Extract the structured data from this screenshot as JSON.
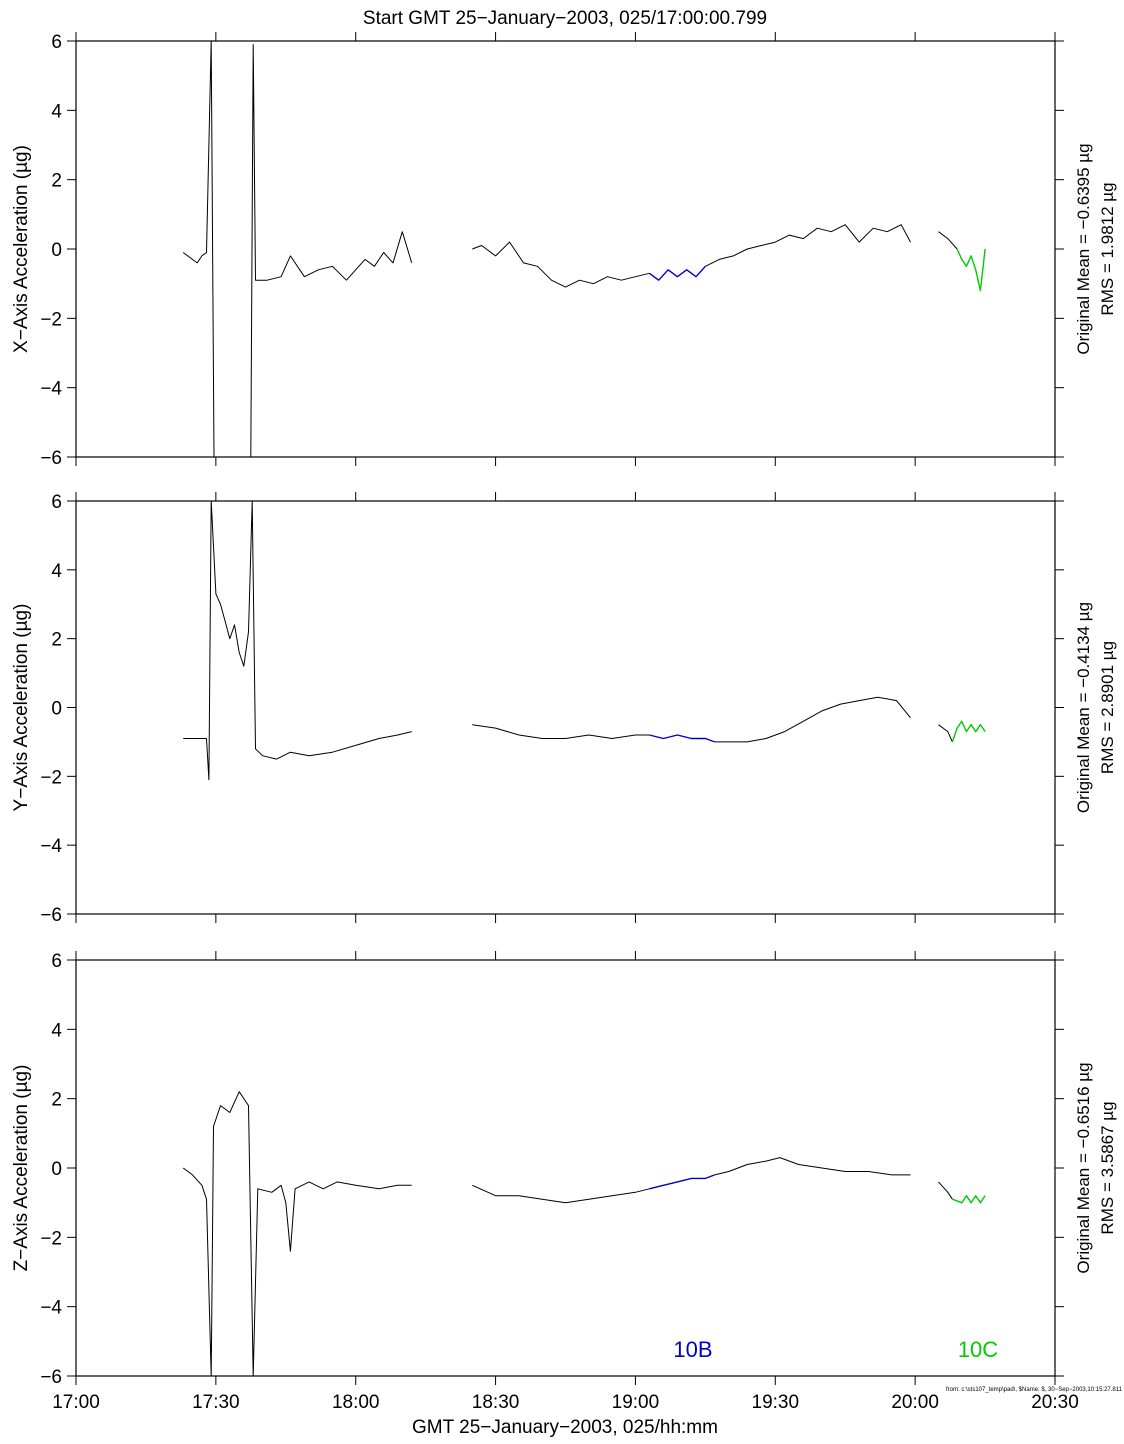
{
  "page_title": "Start GMT 25−January−2003, 025/17:00:00.799",
  "xlabel": "GMT 25−January−2003, 025/hh:mm",
  "footer": "from: c:\\sts107_temp\\pad\\, $Name:  $, 30−Sep−2003,10:15:27.811",
  "colors": {
    "trace": "#000000",
    "segment_10B": "#0000cc",
    "segment_10C": "#00cc00"
  },
  "segment_labels": {
    "b": "10B",
    "c": "10C"
  },
  "chart_data": [
    {
      "type": "line",
      "ylabel": "X−Axis Acceleration (µg)",
      "mean_label": "Original Mean = −0.6395 µg",
      "rms_label": "RMS = 1.9812 µg",
      "xlim": [
        "17:00",
        "20:30"
      ],
      "ylim": [
        -6,
        6
      ],
      "xticks": [
        "17:00",
        "17:30",
        "18:00",
        "18:30",
        "19:00",
        "19:30",
        "20:00",
        "20:30"
      ],
      "yticks": [
        "−6",
        "−4",
        "−2",
        "0",
        "2",
        "4",
        "6"
      ],
      "series": [
        {
          "color": "black",
          "points": [
            [
              "17:23",
              -0.1
            ],
            [
              "17:25",
              -0.3
            ],
            [
              "17:26",
              -0.4
            ],
            [
              "17:27",
              -0.2
            ],
            [
              "17:28",
              -0.1
            ],
            [
              "17:29",
              6
            ],
            [
              "17:29.6",
              -6
            ],
            [
              "17:37.5",
              -6
            ],
            [
              "17:38",
              5.9
            ],
            [
              "17:38.5",
              -0.9
            ],
            [
              "17:41",
              -0.9
            ],
            [
              "17:44",
              -0.8
            ],
            [
              "17:46",
              -0.2
            ],
            [
              "17:49",
              -0.8
            ],
            [
              "17:52",
              -0.6
            ],
            [
              "17:55",
              -0.5
            ],
            [
              "17:58",
              -0.9
            ],
            [
              "18:00",
              -0.6
            ],
            [
              "18:02",
              -0.3
            ],
            [
              "18:04",
              -0.5
            ],
            [
              "18:06",
              -0.1
            ],
            [
              "18:08",
              -0.4
            ],
            [
              "18:10",
              0.5
            ],
            [
              "18:12",
              -0.4
            ]
          ]
        },
        {
          "color": "black",
          "points": [
            [
              "18:25",
              0
            ],
            [
              "18:27",
              0.1
            ],
            [
              "18:30",
              -0.2
            ],
            [
              "18:33",
              0.2
            ],
            [
              "18:36",
              -0.4
            ],
            [
              "18:39",
              -0.5
            ],
            [
              "18:42",
              -0.9
            ],
            [
              "18:45",
              -1.1
            ],
            [
              "18:48",
              -0.9
            ],
            [
              "18:51",
              -1
            ],
            [
              "18:54",
              -0.8
            ],
            [
              "18:57",
              -0.9
            ],
            [
              "19:00",
              -0.8
            ],
            [
              "19:03",
              -0.7
            ]
          ]
        },
        {
          "color": "blue",
          "points": [
            [
              "19:03",
              -0.7
            ],
            [
              "19:05",
              -0.9
            ],
            [
              "19:07",
              -0.6
            ],
            [
              "19:09",
              -0.8
            ],
            [
              "19:11",
              -0.6
            ],
            [
              "19:13",
              -0.8
            ],
            [
              "19:15",
              -0.5
            ]
          ]
        },
        {
          "color": "black",
          "points": [
            [
              "19:15",
              -0.5
            ],
            [
              "19:18",
              -0.3
            ],
            [
              "19:21",
              -0.2
            ],
            [
              "19:24",
              0
            ],
            [
              "19:27",
              0.1
            ],
            [
              "19:30",
              0.2
            ],
            [
              "19:33",
              0.4
            ],
            [
              "19:36",
              0.3
            ],
            [
              "19:39",
              0.6
            ],
            [
              "19:42",
              0.5
            ],
            [
              "19:45",
              0.7
            ],
            [
              "19:48",
              0.2
            ],
            [
              "19:51",
              0.6
            ],
            [
              "19:54",
              0.5
            ],
            [
              "19:57",
              0.7
            ],
            [
              "19:59",
              0.2
            ]
          ]
        },
        {
          "color": "black",
          "points": [
            [
              "20:05",
              0.5
            ],
            [
              "20:07",
              0.3
            ],
            [
              "20:09",
              0
            ]
          ]
        },
        {
          "color": "green",
          "points": [
            [
              "20:09",
              0
            ],
            [
              "20:10",
              -0.3
            ],
            [
              "20:11",
              -0.5
            ],
            [
              "20:12",
              -0.2
            ],
            [
              "20:13",
              -0.6
            ],
            [
              "20:14",
              -1.2
            ],
            [
              "20:15",
              0
            ]
          ]
        }
      ]
    },
    {
      "type": "line",
      "ylabel": "Y−Axis Acceleration (µg)",
      "mean_label": "Original Mean = −0.4134 µg",
      "rms_label": "RMS = 2.8901 µg",
      "xlim": [
        "17:00",
        "20:30"
      ],
      "ylim": [
        -6,
        6
      ],
      "xticks": [
        "17:00",
        "17:30",
        "18:00",
        "18:30",
        "19:00",
        "19:30",
        "20:00",
        "20:30"
      ],
      "yticks": [
        "−6",
        "−4",
        "−2",
        "0",
        "2",
        "4",
        "6"
      ],
      "series": [
        {
          "color": "black",
          "points": [
            [
              "17:23",
              -0.9
            ],
            [
              "17:26",
              -0.9
            ],
            [
              "17:28",
              -0.9
            ],
            [
              "17:28.5",
              -2.1
            ],
            [
              "17:29",
              6
            ],
            [
              "17:30",
              3.3
            ],
            [
              "17:31",
              3
            ],
            [
              "17:32",
              2.5
            ],
            [
              "17:33",
              2
            ],
            [
              "17:34",
              2.4
            ],
            [
              "17:35",
              1.6
            ],
            [
              "17:36",
              1.2
            ],
            [
              "17:37",
              2.2
            ],
            [
              "17:37.8",
              6
            ],
            [
              "17:38.5",
              -1.2
            ],
            [
              "17:40",
              -1.4
            ],
            [
              "17:43",
              -1.5
            ],
            [
              "17:46",
              -1.3
            ],
            [
              "17:50",
              -1.4
            ],
            [
              "17:55",
              -1.3
            ],
            [
              "18:00",
              -1.1
            ],
            [
              "18:05",
              -0.9
            ],
            [
              "18:09",
              -0.8
            ],
            [
              "18:12",
              -0.7
            ]
          ]
        },
        {
          "color": "black",
          "points": [
            [
              "18:25",
              -0.5
            ],
            [
              "18:30",
              -0.6
            ],
            [
              "18:35",
              -0.8
            ],
            [
              "18:40",
              -0.9
            ],
            [
              "18:45",
              -0.9
            ],
            [
              "18:50",
              -0.8
            ],
            [
              "18:55",
              -0.9
            ],
            [
              "19:00",
              -0.8
            ],
            [
              "19:03",
              -0.8
            ]
          ]
        },
        {
          "color": "blue",
          "points": [
            [
              "19:03",
              -0.8
            ],
            [
              "19:06",
              -0.9
            ],
            [
              "19:09",
              -0.8
            ],
            [
              "19:12",
              -0.9
            ],
            [
              "19:15",
              -0.9
            ],
            [
              "19:17",
              -1
            ]
          ]
        },
        {
          "color": "black",
          "points": [
            [
              "19:17",
              -1
            ],
            [
              "19:20",
              -1
            ],
            [
              "19:24",
              -1
            ],
            [
              "19:28",
              -0.9
            ],
            [
              "19:32",
              -0.7
            ],
            [
              "19:36",
              -0.4
            ],
            [
              "19:40",
              -0.1
            ],
            [
              "19:44",
              0.1
            ],
            [
              "19:48",
              0.2
            ],
            [
              "19:52",
              0.3
            ],
            [
              "19:56",
              0.2
            ],
            [
              "19:59",
              -0.3
            ]
          ]
        },
        {
          "color": "black",
          "points": [
            [
              "20:05",
              -0.5
            ],
            [
              "20:07",
              -0.7
            ],
            [
              "20:08",
              -1
            ]
          ]
        },
        {
          "color": "green",
          "points": [
            [
              "20:08",
              -1
            ],
            [
              "20:09",
              -0.6
            ],
            [
              "20:10",
              -0.4
            ],
            [
              "20:11",
              -0.7
            ],
            [
              "20:12",
              -0.5
            ],
            [
              "20:13",
              -0.7
            ],
            [
              "20:14",
              -0.5
            ],
            [
              "20:15",
              -0.7
            ]
          ]
        }
      ]
    },
    {
      "type": "line",
      "ylabel": "Z−Axis Acceleration (µg)",
      "mean_label": "Original Mean = −0.6516 µg",
      "rms_label": "RMS = 3.5867 µg",
      "xlim": [
        "17:00",
        "20:30"
      ],
      "ylim": [
        -6,
        6
      ],
      "xticks": [
        "17:00",
        "17:30",
        "18:00",
        "18:30",
        "19:00",
        "19:30",
        "20:00",
        "20:30"
      ],
      "yticks": [
        "−6",
        "−4",
        "−2",
        "0",
        "2",
        "4",
        "6"
      ],
      "series": [
        {
          "color": "black",
          "points": [
            [
              "17:23",
              0
            ],
            [
              "17:25",
              -0.2
            ],
            [
              "17:27",
              -0.5
            ],
            [
              "17:28",
              -0.9
            ],
            [
              "17:29",
              -6
            ],
            [
              "17:29.5",
              1.2
            ],
            [
              "17:31",
              1.8
            ],
            [
              "17:33",
              1.6
            ],
            [
              "17:35",
              2.2
            ],
            [
              "17:37",
              1.8
            ],
            [
              "17:38",
              -6
            ],
            [
              "17:39",
              -0.6
            ],
            [
              "17:42",
              -0.7
            ],
            [
              "17:44",
              -0.5
            ],
            [
              "17:45",
              -1
            ],
            [
              "17:46",
              -2.4
            ],
            [
              "17:47",
              -0.6
            ],
            [
              "17:50",
              -0.4
            ],
            [
              "17:53",
              -0.6
            ],
            [
              "17:56",
              -0.4
            ],
            [
              "18:00",
              -0.5
            ],
            [
              "18:05",
              -0.6
            ],
            [
              "18:09",
              -0.5
            ],
            [
              "18:12",
              -0.5
            ]
          ]
        },
        {
          "color": "black",
          "points": [
            [
              "18:25",
              -0.5
            ],
            [
              "18:30",
              -0.8
            ],
            [
              "18:35",
              -0.8
            ],
            [
              "18:40",
              -0.9
            ],
            [
              "18:45",
              -1
            ],
            [
              "18:50",
              -0.9
            ],
            [
              "18:55",
              -0.8
            ],
            [
              "19:00",
              -0.7
            ],
            [
              "19:03",
              -0.6
            ]
          ]
        },
        {
          "color": "blue",
          "points": [
            [
              "19:03",
              -0.6
            ],
            [
              "19:06",
              -0.5
            ],
            [
              "19:09",
              -0.4
            ],
            [
              "19:12",
              -0.3
            ],
            [
              "19:15",
              -0.3
            ],
            [
              "19:17",
              -0.2
            ]
          ]
        },
        {
          "color": "black",
          "points": [
            [
              "19:17",
              -0.2
            ],
            [
              "19:20",
              -0.1
            ],
            [
              "19:24",
              0.1
            ],
            [
              "19:28",
              0.2
            ],
            [
              "19:31",
              0.3
            ],
            [
              "19:35",
              0.1
            ],
            [
              "19:40",
              0
            ],
            [
              "19:45",
              -0.1
            ],
            [
              "19:50",
              -0.1
            ],
            [
              "19:55",
              -0.2
            ],
            [
              "19:59",
              -0.2
            ]
          ]
        },
        {
          "color": "black",
          "points": [
            [
              "20:05",
              -0.4
            ],
            [
              "20:07",
              -0.7
            ],
            [
              "20:08",
              -0.9
            ]
          ]
        },
        {
          "color": "green",
          "points": [
            [
              "20:08",
              -0.9
            ],
            [
              "20:10",
              -1
            ],
            [
              "20:11",
              -0.8
            ],
            [
              "20:12",
              -1
            ],
            [
              "20:13",
              -0.8
            ],
            [
              "20:14",
              -1
            ],
            [
              "20:15",
              -0.8
            ]
          ]
        }
      ]
    }
  ]
}
